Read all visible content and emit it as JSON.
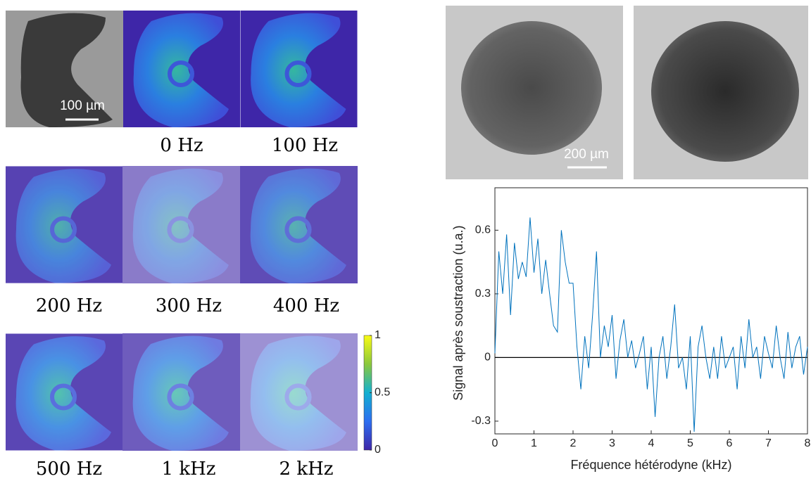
{
  "figure": {
    "scale_bars": [
      "100 µm",
      "200 µm"
    ],
    "panels": [
      "0 Hz",
      "100 Hz",
      "200 Hz",
      "300 Hz",
      "400 Hz",
      "500 Hz",
      "1 kHz",
      "2 kHz"
    ],
    "colorbar": {
      "lim": [
        0,
        1
      ],
      "ticks": [
        0,
        0.5,
        1
      ]
    }
  },
  "chart_data": {
    "type": "line",
    "x_label": "Fréquence hétérodyne (kHz)",
    "y_label": "Signal après soustraction (u.a.)",
    "x": [
      0,
      0.1,
      0.2,
      0.3,
      0.4,
      0.5,
      0.6,
      0.7,
      0.8,
      0.9,
      1,
      1.1,
      1.2,
      1.3,
      1.4,
      1.5,
      1.6,
      1.7,
      1.8,
      1.9,
      2,
      2.1,
      2.2,
      2.3,
      2.4,
      2.5,
      2.6,
      2.7,
      2.8,
      2.9,
      3,
      3.1,
      3.2,
      3.3,
      3.4,
      3.5,
      3.6,
      3.7,
      3.8,
      3.9,
      4,
      4.1,
      4.2,
      4.3,
      4.4,
      4.5,
      4.6,
      4.7,
      4.8,
      4.9,
      5,
      5.1,
      5.2,
      5.3,
      5.4,
      5.5,
      5.6,
      5.7,
      5.8,
      5.9,
      6,
      6.1,
      6.2,
      6.3,
      6.4,
      6.5,
      6.6,
      6.7,
      6.8,
      6.9,
      7,
      7.1,
      7.2,
      7.3,
      7.4,
      7.5,
      7.6,
      7.7,
      7.8,
      7.9,
      8
    ],
    "values": [
      0.02,
      0.5,
      0.3,
      0.58,
      0.2,
      0.54,
      0.37,
      0.45,
      0.38,
      0.66,
      0.4,
      0.56,
      0.3,
      0.46,
      0.3,
      0.15,
      0.12,
      0.6,
      0.45,
      0.35,
      0.35,
      0.05,
      -0.15,
      0.1,
      -0.05,
      0.2,
      0.5,
      0,
      0.15,
      0.05,
      0.2,
      -0.1,
      0.08,
      0.18,
      0,
      0.08,
      -0.05,
      0.02,
      0.1,
      -0.15,
      0.05,
      -0.28,
      0,
      0.1,
      -0.1,
      0.05,
      0.25,
      -0.05,
      0,
      -0.15,
      0.1,
      -0.35,
      0.05,
      0.15,
      0,
      -0.1,
      0.05,
      -0.1,
      0.1,
      -0.05,
      0,
      0.05,
      -0.15,
      0.1,
      -0.05,
      0.18,
      0,
      0.05,
      -0.1,
      0.1,
      0.02,
      -0.05,
      0.15,
      0,
      -0.1,
      0.12,
      -0.05,
      0.05,
      0.1,
      -0.08,
      0.05
    ],
    "color": "#0072bd",
    "xlim": [
      0,
      8
    ],
    "xticks": [
      0,
      1,
      2,
      3,
      4,
      5,
      6,
      7,
      8
    ],
    "ylim": [
      -0.36,
      0.8
    ],
    "yticks": [
      -0.3,
      0,
      0.3,
      0.6
    ],
    "zero_line": true
  }
}
